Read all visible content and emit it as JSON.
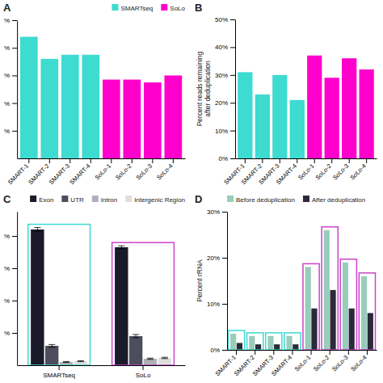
{
  "chart_data": [
    {
      "type": "bar",
      "title": "A",
      "categories": [
        "SMART-1",
        "SMART-2",
        "SMART-3",
        "SMART-4",
        "SoLo-1",
        "SoLo-2",
        "SoLo-3",
        "SoLo-4"
      ],
      "series": [
        {
          "name": "SMARTseq",
          "color": "#3DDBD0",
          "values": [
            88,
            72,
            75,
            75,
            null,
            null,
            null,
            null
          ]
        },
        {
          "name": "SoLo",
          "color": "#FF00CC",
          "values": [
            null,
            null,
            null,
            null,
            57,
            57,
            55,
            60
          ]
        }
      ],
      "stacked": true,
      "ylim": [
        0,
        100
      ],
      "yticks": [
        {
          "value": 20,
          "label": "%"
        },
        {
          "value": 40,
          "label": "%"
        },
        {
          "value": 60,
          "label": "%"
        },
        {
          "value": 80,
          "label": "%"
        },
        {
          "value": 100,
          "label": "%"
        }
      ],
      "legend": "upper right"
    },
    {
      "type": "bar",
      "title": "B",
      "categories": [
        "SMART-1",
        "SMART-2",
        "SMART-3",
        "SMART-4",
        "SoLo-1",
        "SoLo-2",
        "SoLo-3",
        "SoLo-4"
      ],
      "values": [
        31,
        23,
        30,
        21,
        37,
        29,
        36,
        32
      ],
      "colors": [
        "#3DDBD0",
        "#3DDBD0",
        "#3DDBD0",
        "#3DDBD0",
        "#FF00CC",
        "#FF00CC",
        "#FF00CC",
        "#FF00CC"
      ],
      "ylabel": "Percent reads remaining\nafter deduplication",
      "ylim": [
        0,
        50
      ],
      "yticks": [
        {
          "value": 0,
          "label": "0%"
        },
        {
          "value": 10,
          "label": "10%"
        },
        {
          "value": 20,
          "label": "20%"
        },
        {
          "value": 30,
          "label": "30%"
        },
        {
          "value": 40,
          "label": "40%"
        },
        {
          "value": 50,
          "label": "50%"
        }
      ]
    },
    {
      "type": "bar",
      "title": "C",
      "categories": [
        "SMARTseq",
        "SoLo"
      ],
      "series": [
        {
          "name": "Exon",
          "color": "#1a1a2a",
          "values": [
            84,
            73
          ],
          "errors": [
            1.2,
            0.9
          ]
        },
        {
          "name": "UTR",
          "color": "#4d4d5e",
          "values": [
            12,
            18
          ],
          "errors": [
            0.8,
            1.0
          ]
        },
        {
          "name": "Intron",
          "color": "#b0b0b8",
          "values": [
            2.0,
            4.0
          ],
          "errors": [
            0.3,
            0.4
          ]
        },
        {
          "name": "Intergenic Region",
          "color": "#dedede",
          "values": [
            2.5,
            4.5
          ],
          "errors": [
            0.3,
            0.4
          ]
        }
      ],
      "colors": [
        "#3DDBD0",
        "#CC44CC"
      ],
      "ylim": [
        0,
        95
      ],
      "yticks": [
        {
          "value": 20,
          "label": "%"
        },
        {
          "value": 40,
          "label": "%"
        },
        {
          "value": 60,
          "label": "%"
        },
        {
          "value": 80,
          "label": "%"
        }
      ],
      "legend": "upper right"
    },
    {
      "type": "bar",
      "title": "D",
      "categories": [
        "SMART-1",
        "SMART-2",
        "SMART-3",
        "SMART-4",
        "SoLo-1",
        "SoLo-2",
        "SoLo-3",
        "SoLo-4"
      ],
      "series": [
        {
          "name": "Before deduplication",
          "color": "#99ccbb",
          "values": [
            3.5,
            3.0,
            3.0,
            3.0,
            18,
            26,
            19,
            16
          ]
        },
        {
          "name": "After deduplication",
          "color": "#2a2a3a",
          "values": [
            1.5,
            1.2,
            1.2,
            1.2,
            9,
            13,
            9,
            8
          ]
        }
      ],
      "colors": [
        "#3DDBD0",
        "#3DDBD0",
        "#3DDBD0",
        "#3DDBD0",
        "#CC44CC",
        "#CC44CC",
        "#CC44CC",
        "#CC44CC"
      ],
      "ylabel": "Percent rRNA",
      "ylim": [
        0,
        30
      ],
      "yticks": [
        {
          "value": 0,
          "label": "0%"
        },
        {
          "value": 10,
          "label": "10%"
        },
        {
          "value": 20,
          "label": "20%"
        },
        {
          "value": 30,
          "label": "30%"
        }
      ],
      "legend": "upper left"
    }
  ]
}
